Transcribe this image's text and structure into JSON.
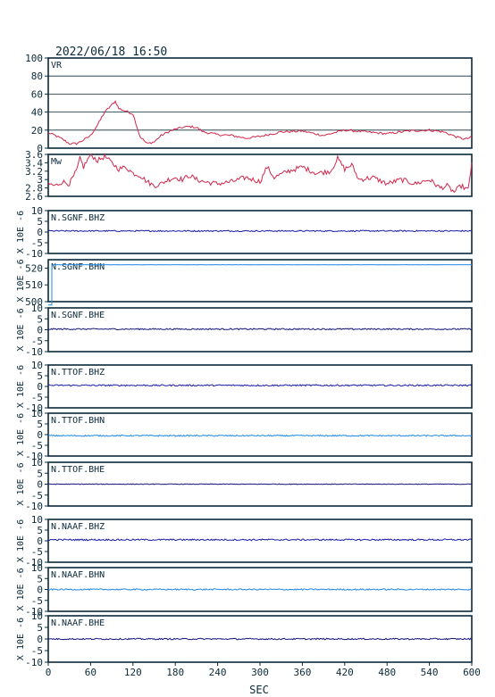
{
  "header": {
    "timestamp": "2022/06/18 16:50"
  },
  "x_axis": {
    "label": "SEC",
    "ticks": [
      0,
      60,
      120,
      180,
      240,
      300,
      360,
      420,
      480,
      540,
      600
    ],
    "range": [
      0,
      600
    ]
  },
  "unit_label": "X 10E -6",
  "colors": {
    "frame": "#0b2a3a",
    "vr_trace": "#d2284c",
    "mw_trace": "#d2284c",
    "bhz_trace": "#1a1aa6",
    "bhn_trace": "#1e88e5",
    "bhe_trace": "#14147a",
    "grid": "#0b2a3a"
  },
  "chart_data": [
    {
      "type": "line",
      "label": "VR",
      "ylim": [
        0,
        100
      ],
      "yticks": [
        0,
        20,
        40,
        60,
        80,
        100
      ],
      "grid": true,
      "x": [
        0,
        10,
        20,
        30,
        40,
        50,
        60,
        70,
        80,
        90,
        95,
        100,
        110,
        120,
        130,
        140,
        150,
        160,
        170,
        180,
        190,
        200,
        210,
        220,
        240,
        260,
        280,
        300,
        330,
        360,
        390,
        420,
        450,
        480,
        510,
        540,
        560,
        580,
        590,
        600
      ],
      "values": [
        17,
        14,
        10,
        5,
        5,
        9,
        14,
        26,
        40,
        48,
        52,
        44,
        41,
        38,
        13,
        5,
        7,
        14,
        18,
        21,
        23,
        24,
        23,
        18,
        15,
        14,
        11,
        13,
        18,
        19,
        14,
        20,
        18,
        16,
        19,
        20,
        18,
        12,
        10,
        12
      ]
    },
    {
      "type": "line",
      "label": "Mw",
      "ylim": [
        2.6,
        3.6
      ],
      "yticks": [
        2.6,
        2.8,
        3.0,
        3.2,
        3.4,
        3.6
      ],
      "grid": false,
      "x": [
        0,
        10,
        20,
        30,
        40,
        45,
        50,
        60,
        70,
        80,
        90,
        100,
        110,
        120,
        130,
        140,
        150,
        160,
        170,
        180,
        190,
        200,
        210,
        220,
        240,
        260,
        280,
        300,
        310,
        320,
        340,
        360,
        380,
        400,
        410,
        420,
        430,
        440,
        460,
        480,
        500,
        520,
        540,
        555,
        565,
        575,
        585,
        595,
        600
      ],
      "values": [
        2.9,
        2.85,
        2.95,
        2.9,
        3.2,
        3.5,
        3.3,
        3.6,
        3.45,
        3.55,
        3.4,
        3.25,
        3.3,
        3.15,
        3.1,
        2.95,
        2.85,
        2.9,
        3.0,
        3.05,
        3.0,
        3.1,
        3.0,
        2.95,
        2.9,
        2.95,
        3.05,
        2.95,
        3.3,
        3.05,
        3.2,
        3.3,
        3.15,
        3.2,
        3.5,
        3.25,
        3.35,
        3.0,
        3.05,
        2.9,
        3.0,
        2.9,
        3.0,
        2.8,
        2.85,
        2.7,
        2.85,
        2.75,
        3.4
      ]
    },
    {
      "type": "line",
      "label": "N.SGNF.BHZ",
      "ylim": [
        -10,
        10
      ],
      "yticks": [
        -10,
        -5,
        0,
        5,
        10
      ],
      "trace_level": 0.5,
      "noise": 0.3,
      "color_key": "bhz_trace"
    },
    {
      "type": "line",
      "label": "N.SGNF.BHN",
      "ylim": [
        500,
        525
      ],
      "yticks": [
        500,
        510,
        520
      ],
      "trace_level": 522,
      "noise": 0.05,
      "step_at": 5,
      "step_from": 498,
      "color_key": "bhn_trace"
    },
    {
      "type": "line",
      "label": "N.SGNF.BHE",
      "ylim": [
        -10,
        10
      ],
      "yticks": [
        -10,
        -5,
        0,
        5,
        10
      ],
      "trace_level": 0.3,
      "noise": 0.3,
      "color_key": "bhe_trace"
    },
    {
      "type": "line",
      "label": "N.TTOF.BHZ",
      "ylim": [
        -10,
        10
      ],
      "yticks": [
        -10,
        -5,
        0,
        5,
        10
      ],
      "trace_level": 0.5,
      "noise": 0.35,
      "color_key": "bhz_trace"
    },
    {
      "type": "line",
      "label": "N.TTOF.BHN",
      "ylim": [
        -10,
        10
      ],
      "yticks": [
        -10,
        -5,
        0,
        5,
        10
      ],
      "trace_level": -0.5,
      "noise": 0.3,
      "color_key": "bhn_trace"
    },
    {
      "type": "line",
      "label": "N.TTOF.BHE",
      "ylim": [
        -10,
        10
      ],
      "yticks": [
        -10,
        -5,
        0,
        5,
        10
      ],
      "trace_level": 0.0,
      "noise": 0.15,
      "color_key": "bhe_trace"
    },
    {
      "type": "line",
      "label": "N.NAAF.BHZ",
      "ylim": [
        -10,
        10
      ],
      "yticks": [
        -10,
        -5,
        0,
        5,
        10
      ],
      "trace_level": 0.5,
      "noise": 0.35,
      "color_key": "bhz_trace"
    },
    {
      "type": "line",
      "label": "N.NAAF.BHN",
      "ylim": [
        -10,
        10
      ],
      "yticks": [
        -10,
        -5,
        0,
        5,
        10
      ],
      "trace_level": 0.0,
      "noise": 0.3,
      "color_key": "bhn_trace"
    },
    {
      "type": "line",
      "label": "N.NAAF.BHE",
      "ylim": [
        -10,
        10
      ],
      "yticks": [
        -10,
        -5,
        0,
        5,
        10
      ],
      "trace_level": 0.0,
      "noise": 0.3,
      "color_key": "bhe_trace"
    }
  ]
}
